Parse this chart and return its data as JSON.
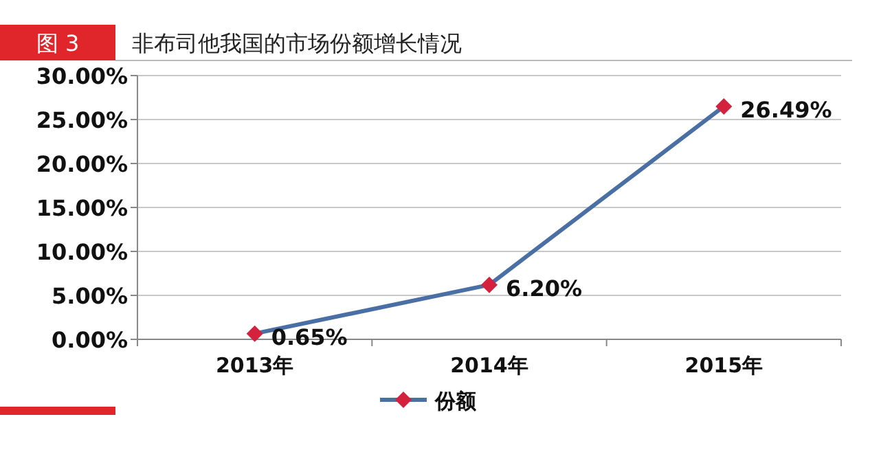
{
  "chart_data": {
    "type": "line",
    "title": "非布司他我国的市场份额增长情况",
    "annotations": [
      "图 3"
    ],
    "categories": [
      "2013年",
      "2014年",
      "2015年"
    ],
    "series": [
      {
        "name": "份额",
        "color": "#4a6fa5",
        "values": [
          0.65,
          6.2,
          26.49
        ],
        "value_labels": [
          "0.65%",
          "6.20%",
          "26.49%"
        ]
      }
    ],
    "ylim": [
      0,
      30
    ],
    "yticks": [
      {
        "value": 0,
        "label": "0.00%"
      },
      {
        "value": 5,
        "label": "5.00%"
      },
      {
        "value": 10,
        "label": "10.00%"
      },
      {
        "value": 15,
        "label": "15.00%"
      },
      {
        "value": 20,
        "label": "20.00%"
      },
      {
        "value": 25,
        "label": "25.00%"
      },
      {
        "value": 30,
        "label": "30.00%"
      }
    ],
    "grid": "y",
    "legend": "bottom",
    "marker": "diamond",
    "line_style": "solid"
  }
}
